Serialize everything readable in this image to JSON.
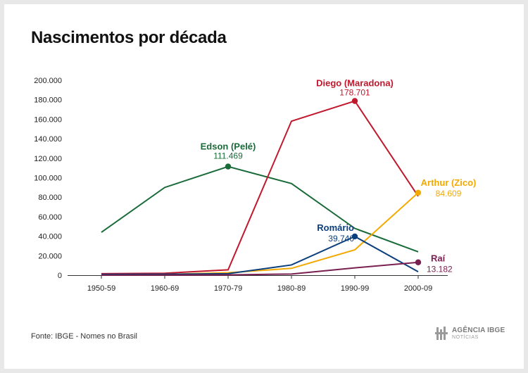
{
  "title": "Nascimentos por década",
  "source": "Fonte: IBGE - Nomes no Brasil",
  "logo": {
    "text": "AGÊNCIA IBGE",
    "subtext": "NOTÍCIAS"
  },
  "chart_data": {
    "type": "line",
    "title": "Nascimentos por década",
    "categories": [
      "1950-59",
      "1960-69",
      "1970-79",
      "1980-89",
      "1990-99",
      "2000-09"
    ],
    "ylim": [
      0,
      200000
    ],
    "yticks": [
      0,
      20000,
      40000,
      60000,
      80000,
      100000,
      120000,
      140000,
      160000,
      180000,
      200000
    ],
    "ytick_labels": [
      "0",
      "20.000",
      "40.000",
      "60.000",
      "80.000",
      "100.000",
      "120.000",
      "140.000",
      "160.000",
      "180.000",
      "200.000"
    ],
    "grid": false,
    "legend": "inline labels",
    "series": [
      {
        "name": "Edson (Pelé)",
        "color": "#1a6b3a",
        "values": [
          44000,
          90000,
          111469,
          94000,
          48000,
          24000
        ],
        "highlight_index": 2,
        "highlight_label": "111.469"
      },
      {
        "name": "Diego (Maradona)",
        "color": "#c0182c",
        "values": [
          1500,
          2000,
          5500,
          158000,
          178701,
          81000
        ],
        "highlight_index": 4,
        "highlight_label": "178.701"
      },
      {
        "name": "Arthur (Zico)",
        "color": "#f2a900",
        "values": [
          500,
          800,
          2500,
          7000,
          26000,
          84609
        ],
        "highlight_index": 5,
        "highlight_label": "84.609"
      },
      {
        "name": "Romário",
        "color": "#0b3f7d",
        "values": [
          800,
          1000,
          1500,
          10500,
          39740,
          3500
        ],
        "highlight_index": 4,
        "highlight_label": "39.740"
      },
      {
        "name": "Raí",
        "color": "#7a2050",
        "values": [
          100,
          150,
          300,
          1200,
          7500,
          13182
        ],
        "highlight_index": 5,
        "highlight_label": "13.182"
      }
    ]
  }
}
